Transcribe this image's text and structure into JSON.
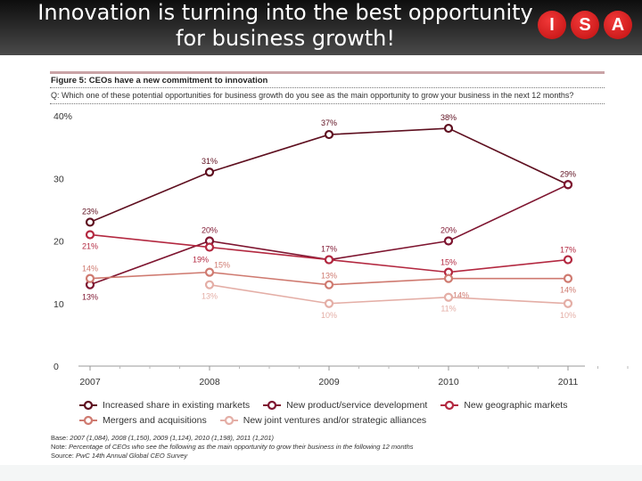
{
  "header": {
    "title": "Innovation is turning into the best opportunity for business growth!",
    "logo_letters": [
      "I",
      "S",
      "A"
    ],
    "logo_color": "#d81e1e"
  },
  "figure": {
    "title": "Figure 5: CEOs have a new commitment to innovation",
    "question": "Q: Which one of these potential opportunities for business growth do you see as the main opportunity to grow your business in the next 12 months?",
    "base_label": "Base:",
    "base": "2007 (1,084), 2008 (1,150), 2009 (1,124), 2010 (1,198), 2011 (1,201)",
    "note_label": "Note:",
    "note": "Percentage of CEOs who see the following as the main opportunity to grow their business in the following 12 months",
    "source_label": "Source:",
    "source": "PwC 14th Annual Global CEO Survey"
  },
  "chart_data": {
    "type": "line",
    "title": "Figure 5: CEOs have a new commitment to innovation",
    "x": [
      "2007",
      "2008",
      "2009",
      "2010",
      "2011"
    ],
    "ylim": [
      0,
      40
    ],
    "yticks": [
      "0",
      "10",
      "20",
      "30",
      "40%"
    ],
    "grid": false,
    "legend_position": "bottom",
    "series": [
      {
        "name": "Increased share in existing markets",
        "color": "#5e0f1f",
        "values": [
          23,
          31,
          37,
          38,
          29
        ]
      },
      {
        "name": "New product/service development",
        "color": "#7e1530",
        "values": [
          13,
          20,
          17,
          20,
          29
        ]
      },
      {
        "name": "New geographic markets",
        "color": "#b32840",
        "values": [
          21,
          19,
          17,
          15,
          17
        ]
      },
      {
        "name": "Mergers and acquisitions",
        "color": "#cf7a70",
        "values": [
          14,
          15,
          13,
          14,
          14
        ]
      },
      {
        "name": "New joint ventures and/or strategic alliances",
        "color": "#e4aea6",
        "values": [
          null,
          13,
          10,
          11,
          10
        ]
      }
    ]
  }
}
